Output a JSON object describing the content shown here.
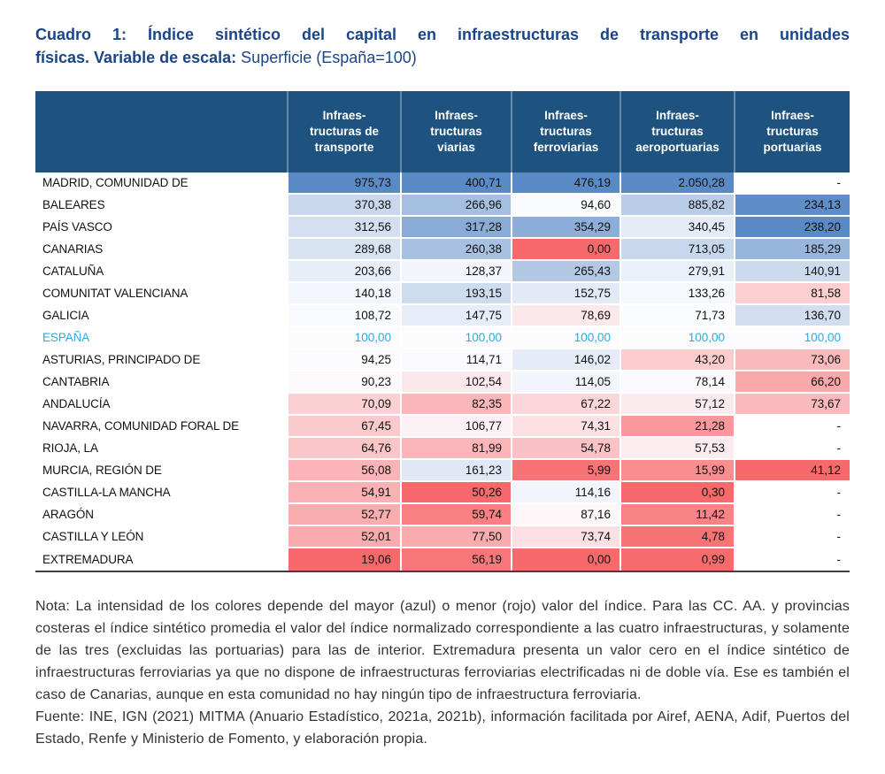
{
  "title": {
    "line1": "Cuadro 1: Índice sintético del capital en infraestructuras de transporte en unidades",
    "line2_bold": "físicas. Variable de escala:",
    "line2_regular": "Superficie (España=100)"
  },
  "table": {
    "corner_label": "",
    "columns": [
      "Infraes-\ntructuras de\ntransporte",
      "Infraes-\ntructuras\nviarias",
      "Infraes-\ntructuras\nferroviarias",
      "Infraes-\ntructuras\naeroportuarias",
      "Infraes-\ntructuras\nportuarias"
    ],
    "reference_row": "ESPAÑA",
    "rows": [
      {
        "label": "MADRID, COMUNIDAD DE",
        "values": [
          "975,73",
          "400,71",
          "476,19",
          "2.050,28",
          "-"
        ]
      },
      {
        "label": "BALEARES",
        "values": [
          "370,38",
          "266,96",
          "94,60",
          "885,82",
          "234,13"
        ]
      },
      {
        "label": "PAÍS VASCO",
        "values": [
          "312,56",
          "317,28",
          "354,29",
          "340,45",
          "238,20"
        ]
      },
      {
        "label": "CANARIAS",
        "values": [
          "289,68",
          "260,38",
          "0,00",
          "713,05",
          "185,29"
        ]
      },
      {
        "label": "CATALUÑA",
        "values": [
          "203,66",
          "128,37",
          "265,43",
          "279,91",
          "140,91"
        ]
      },
      {
        "label": "COMUNITAT VALENCIANA",
        "values": [
          "140,18",
          "193,15",
          "152,75",
          "133,26",
          "81,58"
        ]
      },
      {
        "label": "GALICIA",
        "values": [
          "108,72",
          "147,75",
          "78,69",
          "71,73",
          "136,70"
        ]
      },
      {
        "label": "ESPAÑA",
        "values": [
          "100,00",
          "100,00",
          "100,00",
          "100,00",
          "100,00"
        ]
      },
      {
        "label": "ASTURIAS, PRINCIPADO DE",
        "values": [
          "94,25",
          "114,71",
          "146,02",
          "43,20",
          "73,06"
        ]
      },
      {
        "label": "CANTABRIA",
        "values": [
          "90,23",
          "102,54",
          "114,05",
          "78,14",
          "66,20"
        ]
      },
      {
        "label": "ANDALUCÍA",
        "values": [
          "70,09",
          "82,35",
          "67,22",
          "57,12",
          "73,67"
        ]
      },
      {
        "label": "NAVARRA, COMUNIDAD FORAL DE",
        "values": [
          "67,45",
          "106,77",
          "74,31",
          "21,28",
          "-"
        ]
      },
      {
        "label": "RIOJA, LA",
        "values": [
          "64,76",
          "81,99",
          "54,78",
          "57,53",
          "-"
        ]
      },
      {
        "label": "MURCIA, REGIÓN DE",
        "values": [
          "56,08",
          "161,23",
          "5,99",
          "15,99",
          "41,12"
        ]
      },
      {
        "label": "CASTILLA-LA MANCHA",
        "values": [
          "54,91",
          "50,26",
          "114,16",
          "0,30",
          "-"
        ]
      },
      {
        "label": "ARAGÓN",
        "values": [
          "52,77",
          "59,74",
          "87,16",
          "11,42",
          "-"
        ]
      },
      {
        "label": "CASTILLA Y LEÓN",
        "values": [
          "52,01",
          "77,50",
          "73,74",
          "4,78",
          "-"
        ]
      },
      {
        "label": "EXTREMADURA",
        "values": [
          "19,06",
          "56,19",
          "0,00",
          "0,99",
          "-"
        ]
      }
    ]
  },
  "colors": {
    "title": "#1A4689",
    "header_bg": "#1E5380",
    "header_text": "#FFFFFF",
    "scale_max_blue": "#5A8AC6",
    "scale_mid_white": "#FCFCFF",
    "scale_min_red": "#F8696B",
    "reference_text": "#29ABE2",
    "table_border": "#3F3F3F"
  },
  "footnote": {
    "nota": "Nota: La intensidad de los colores depende del mayor (azul) o menor (rojo) valor del índice. Para las CC. AA. y provincias costeras el índice sintético promedia el valor del índice normalizado correspondiente a las cuatro infraestructuras, y solamente de las tres (excluidas las portuarias) para las de interior. Extremadura presenta un valor cero en el índice sintético de infraestructuras ferroviarias ya que no dispone de infraestructuras ferroviarias electrificadas ni de doble vía. Ese es también el caso de Canarias, aunque en esta comunidad no hay ningún tipo de infraestructura ferroviaria.",
    "fuente": "Fuente: INE, IGN (2021) MITMA (Anuario Estadístico, 2021a, 2021b), información facilitada por Airef, AENA, Adif, Puertos del Estado, Renfe y Ministerio de Fomento, y elaboración propia."
  }
}
